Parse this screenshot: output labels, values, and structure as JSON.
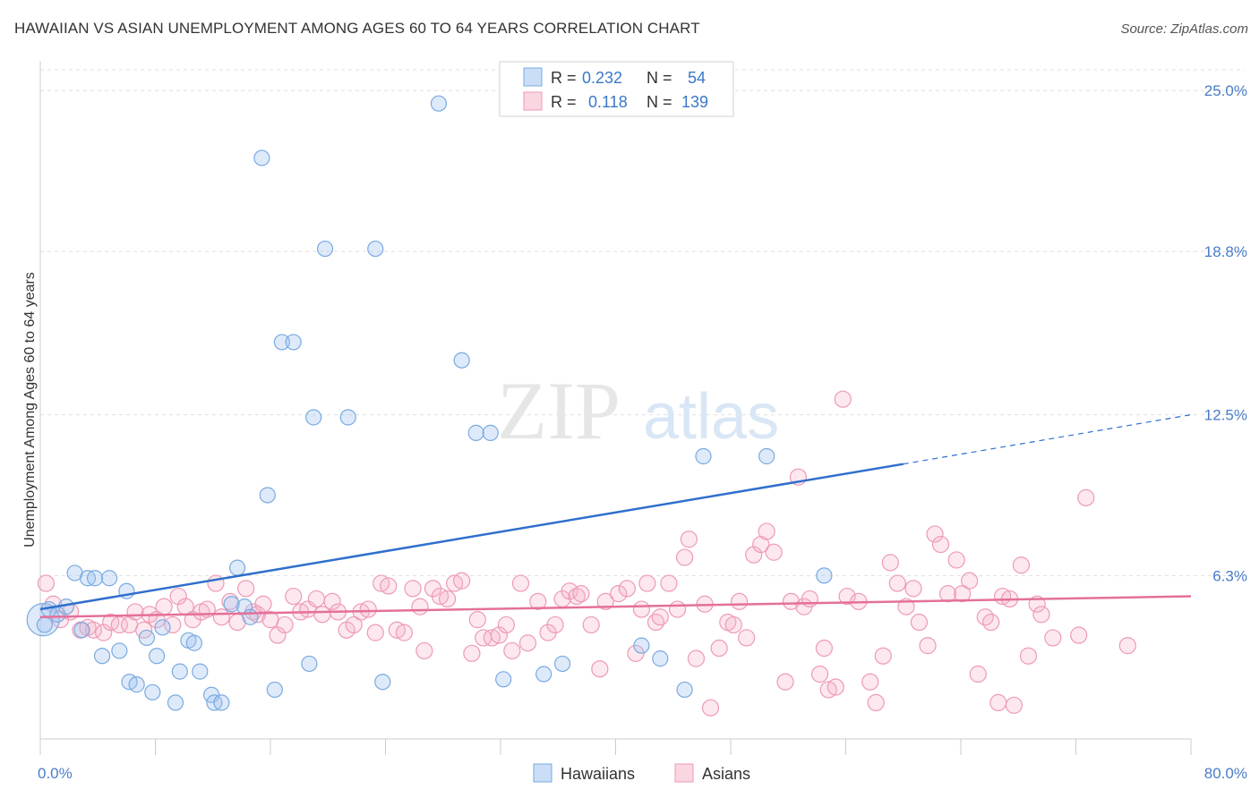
{
  "title": "HAWAIIAN VS ASIAN UNEMPLOYMENT AMONG AGES 60 TO 64 YEARS CORRELATION CHART",
  "source": "Source: ZipAtlas.com",
  "watermark": {
    "zip": "ZIP",
    "atlas": "atlas"
  },
  "colors": {
    "blue": "#7aaae0",
    "blue_fill": "rgba(160,195,240,0.35)",
    "blue_line": "#2f6fcc",
    "pink": "#ee9ab5",
    "pink_fill": "rgba(245,180,200,0.30)",
    "pink_line": "#e4709a"
  },
  "legend": {
    "rows": [
      {
        "r_label": "R =",
        "r_value": "0.232",
        "n_label": "N =",
        "n_value": "54"
      },
      {
        "r_label": "R =",
        "r_value": "0.118",
        "n_label": "N =",
        "n_value": "139"
      }
    ],
    "bottom": [
      "Hawaiians",
      "Asians"
    ]
  },
  "chart_data": {
    "type": "scatter",
    "title": "HAWAIIAN VS ASIAN UNEMPLOYMENT AMONG AGES 60 TO 64 YEARS CORRELATION CHART",
    "ylabel": "Unemployment Among Ages 60 to 64 years",
    "xlabel": "",
    "xlim": [
      0,
      80
    ],
    "ylim": [
      0,
      25.8
    ],
    "x_tick_labels": [
      "0.0%",
      "80.0%"
    ],
    "y_ticks": [
      6.3,
      12.5,
      18.8,
      25.0
    ],
    "y_tick_labels": [
      "6.3%",
      "12.5%",
      "18.8%",
      "25.0%"
    ],
    "grid": true,
    "series": [
      {
        "name": "Hawaiians",
        "trend": {
          "x": [
            0,
            60
          ],
          "y": [
            5.0,
            10.6
          ],
          "dashed_to": [
            80,
            12.5
          ]
        },
        "points": [
          [
            0.3,
            4.4
          ],
          [
            0.6,
            5.0
          ],
          [
            1.2,
            4.8
          ],
          [
            1.8,
            5.1
          ],
          [
            2.4,
            6.4
          ],
          [
            2.9,
            4.2
          ],
          [
            3.3,
            6.2
          ],
          [
            3.8,
            6.2
          ],
          [
            4.3,
            3.2
          ],
          [
            4.8,
            6.2
          ],
          [
            5.5,
            3.4
          ],
          [
            6.0,
            5.7
          ],
          [
            6.2,
            2.2
          ],
          [
            6.7,
            2.1
          ],
          [
            7.4,
            3.9
          ],
          [
            7.8,
            1.8
          ],
          [
            8.1,
            3.2
          ],
          [
            8.5,
            4.3
          ],
          [
            9.4,
            1.4
          ],
          [
            9.7,
            2.6
          ],
          [
            10.3,
            3.8
          ],
          [
            10.7,
            3.7
          ],
          [
            11.1,
            2.6
          ],
          [
            11.9,
            1.7
          ],
          [
            12.1,
            1.4
          ],
          [
            12.6,
            1.4
          ],
          [
            13.3,
            5.2
          ],
          [
            13.7,
            6.6
          ],
          [
            14.2,
            5.1
          ],
          [
            14.6,
            4.7
          ],
          [
            15.4,
            22.4
          ],
          [
            15.8,
            9.4
          ],
          [
            16.3,
            1.9
          ],
          [
            16.8,
            15.3
          ],
          [
            17.6,
            15.3
          ],
          [
            18.7,
            2.9
          ],
          [
            19.0,
            12.4
          ],
          [
            19.8,
            18.9
          ],
          [
            21.4,
            12.4
          ],
          [
            23.3,
            18.9
          ],
          [
            23.8,
            2.2
          ],
          [
            27.7,
            24.5
          ],
          [
            29.3,
            14.6
          ],
          [
            30.3,
            11.8
          ],
          [
            31.3,
            11.8
          ],
          [
            32.2,
            2.3
          ],
          [
            35.0,
            2.5
          ],
          [
            36.3,
            2.9
          ],
          [
            41.8,
            3.6
          ],
          [
            43.1,
            3.1
          ],
          [
            44.8,
            1.9
          ],
          [
            46.1,
            10.9
          ],
          [
            50.5,
            10.9
          ],
          [
            54.5,
            6.3
          ]
        ]
      },
      {
        "name": "Asians",
        "trend": {
          "x": [
            0,
            80
          ],
          "y": [
            4.7,
            5.5
          ]
        },
        "points": [
          [
            0.4,
            6.0
          ],
          [
            0.9,
            5.2
          ],
          [
            1.4,
            4.6
          ],
          [
            2.1,
            4.9
          ],
          [
            2.8,
            4.2
          ],
          [
            3.3,
            4.3
          ],
          [
            3.7,
            4.2
          ],
          [
            4.4,
            4.1
          ],
          [
            4.9,
            4.5
          ],
          [
            5.5,
            4.4
          ],
          [
            6.2,
            4.4
          ],
          [
            6.6,
            4.9
          ],
          [
            7.2,
            4.2
          ],
          [
            7.6,
            4.8
          ],
          [
            8.1,
            4.6
          ],
          [
            8.6,
            5.1
          ],
          [
            9.2,
            4.4
          ],
          [
            9.6,
            5.5
          ],
          [
            10.1,
            5.1
          ],
          [
            10.6,
            4.6
          ],
          [
            11.2,
            4.9
          ],
          [
            11.6,
            5.0
          ],
          [
            12.2,
            6.0
          ],
          [
            12.6,
            4.7
          ],
          [
            13.2,
            5.3
          ],
          [
            13.7,
            4.5
          ],
          [
            14.3,
            5.8
          ],
          [
            14.8,
            4.9
          ],
          [
            15.1,
            4.8
          ],
          [
            15.5,
            5.2
          ],
          [
            16.0,
            4.6
          ],
          [
            16.5,
            4.0
          ],
          [
            17.0,
            4.4
          ],
          [
            17.6,
            5.5
          ],
          [
            18.1,
            4.9
          ],
          [
            18.6,
            5.0
          ],
          [
            19.2,
            5.4
          ],
          [
            19.6,
            4.8
          ],
          [
            20.3,
            5.3
          ],
          [
            20.7,
            4.9
          ],
          [
            21.3,
            4.2
          ],
          [
            21.8,
            4.4
          ],
          [
            22.3,
            4.9
          ],
          [
            22.8,
            5.0
          ],
          [
            23.3,
            4.1
          ],
          [
            23.7,
            6.0
          ],
          [
            24.2,
            5.9
          ],
          [
            24.8,
            4.2
          ],
          [
            25.3,
            4.1
          ],
          [
            25.9,
            5.8
          ],
          [
            26.4,
            5.1
          ],
          [
            26.7,
            3.4
          ],
          [
            27.3,
            5.8
          ],
          [
            27.8,
            5.5
          ],
          [
            28.3,
            5.4
          ],
          [
            28.8,
            6.0
          ],
          [
            29.3,
            6.1
          ],
          [
            30.0,
            3.3
          ],
          [
            30.4,
            4.6
          ],
          [
            30.8,
            3.9
          ],
          [
            31.4,
            3.9
          ],
          [
            31.9,
            4.0
          ],
          [
            32.4,
            4.4
          ],
          [
            32.8,
            3.4
          ],
          [
            33.4,
            6.0
          ],
          [
            33.9,
            3.7
          ],
          [
            34.6,
            5.3
          ],
          [
            35.3,
            4.1
          ],
          [
            35.8,
            4.4
          ],
          [
            36.3,
            5.4
          ],
          [
            36.8,
            5.7
          ],
          [
            37.3,
            5.5
          ],
          [
            37.6,
            5.6
          ],
          [
            38.3,
            4.4
          ],
          [
            38.9,
            2.7
          ],
          [
            39.3,
            5.3
          ],
          [
            40.2,
            5.6
          ],
          [
            40.8,
            5.8
          ],
          [
            41.4,
            3.3
          ],
          [
            41.8,
            5.0
          ],
          [
            42.2,
            6.0
          ],
          [
            42.8,
            4.5
          ],
          [
            43.1,
            4.7
          ],
          [
            43.7,
            6.0
          ],
          [
            44.3,
            5.0
          ],
          [
            44.8,
            7.0
          ],
          [
            45.1,
            7.7
          ],
          [
            45.6,
            3.1
          ],
          [
            46.2,
            5.2
          ],
          [
            46.6,
            1.2
          ],
          [
            47.2,
            3.5
          ],
          [
            47.8,
            4.5
          ],
          [
            48.2,
            4.4
          ],
          [
            48.6,
            5.3
          ],
          [
            49.1,
            3.9
          ],
          [
            49.6,
            7.1
          ],
          [
            50.1,
            7.5
          ],
          [
            50.5,
            8.0
          ],
          [
            51.0,
            7.2
          ],
          [
            51.8,
            2.2
          ],
          [
            52.2,
            5.3
          ],
          [
            52.7,
            10.1
          ],
          [
            53.1,
            5.1
          ],
          [
            53.5,
            5.4
          ],
          [
            54.2,
            2.5
          ],
          [
            54.5,
            3.5
          ],
          [
            54.8,
            1.9
          ],
          [
            55.3,
            2.0
          ],
          [
            56.1,
            5.5
          ],
          [
            56.9,
            5.3
          ],
          [
            57.7,
            2.2
          ],
          [
            58.1,
            1.4
          ],
          [
            58.6,
            3.2
          ],
          [
            59.1,
            6.8
          ],
          [
            59.6,
            6.0
          ],
          [
            60.2,
            5.1
          ],
          [
            60.7,
            5.8
          ],
          [
            61.1,
            4.5
          ],
          [
            61.7,
            3.6
          ],
          [
            62.2,
            7.9
          ],
          [
            62.6,
            7.5
          ],
          [
            63.1,
            5.6
          ],
          [
            63.7,
            6.9
          ],
          [
            64.1,
            5.6
          ],
          [
            64.6,
            6.1
          ],
          [
            65.2,
            2.5
          ],
          [
            65.7,
            4.7
          ],
          [
            66.1,
            4.5
          ],
          [
            66.6,
            1.4
          ],
          [
            66.9,
            5.5
          ],
          [
            67.4,
            5.4
          ],
          [
            67.7,
            1.3
          ],
          [
            68.2,
            6.7
          ],
          [
            68.7,
            3.2
          ],
          [
            69.3,
            5.2
          ],
          [
            69.6,
            4.8
          ],
          [
            70.4,
            3.9
          ],
          [
            72.2,
            4.0
          ],
          [
            75.6,
            3.6
          ]
        ],
        "highlight_outliers": [
          [
            55.8,
            13.1
          ],
          [
            72.7,
            9.3
          ]
        ]
      }
    ]
  }
}
